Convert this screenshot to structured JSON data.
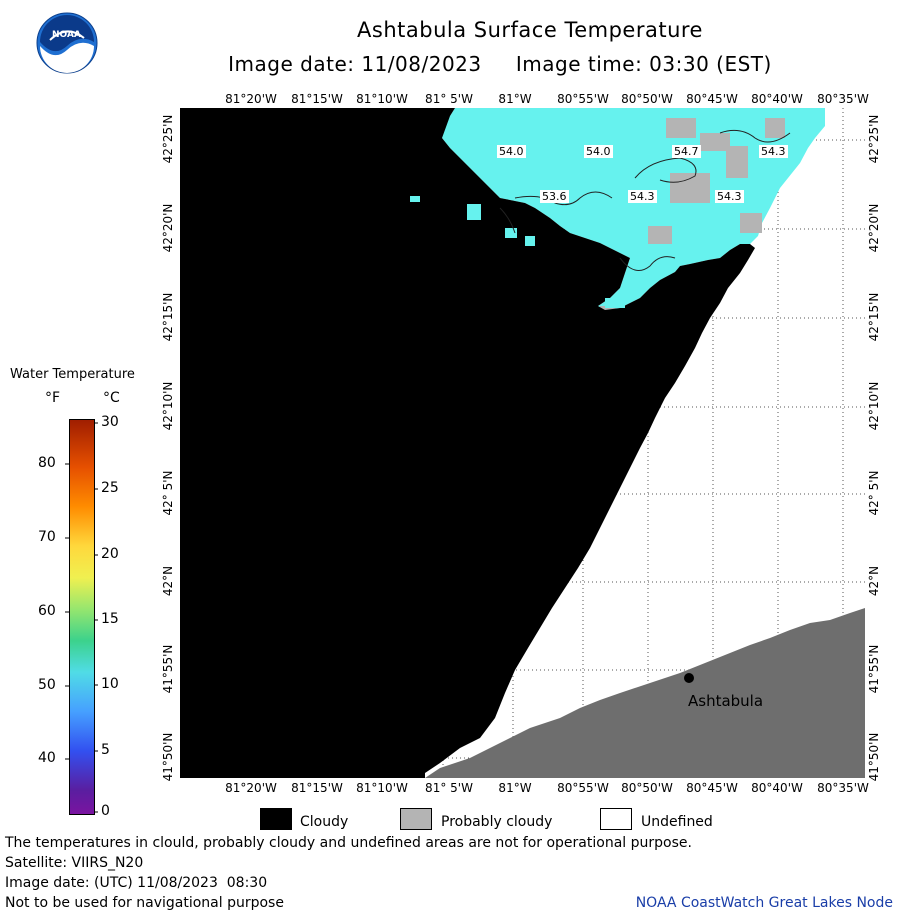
{
  "header": {
    "title": "Ashtabula Surface Temperature",
    "subtitle": "Image date: 11/08/2023     Image time: 03:30 (EST)",
    "logo_text": "NOAA"
  },
  "map": {
    "lon_labels": [
      "81°20'W",
      "81°15'W",
      "81°10'W",
      "81° 5'W",
      "81°W",
      "80°55'W",
      "80°50'W",
      "80°45'W",
      "80°40'W",
      "80°35'W"
    ],
    "lat_labels": [
      "42°25'N",
      "42°20'N",
      "42°15'N",
      "42°10'N",
      "42° 5'N",
      "42°N",
      "41°55'N",
      "41°50'N"
    ],
    "temperature_labels": [
      "54.0",
      "54.0",
      "54.7",
      "54.3",
      "53.6",
      "54.3",
      "54.3"
    ],
    "city": "Ashtabula",
    "colors": {
      "cloudy": "#000000",
      "probably_cloudy": "#b4b4b4",
      "undefined": "#ffffff",
      "land": "#6e6e6e",
      "water": "#66f2ee"
    }
  },
  "legend": {
    "title": "Water Temperature",
    "unit_f": "°F",
    "unit_c": "°C",
    "f_ticks": [
      "80",
      "70",
      "60",
      "50",
      "40"
    ],
    "c_ticks": [
      "30",
      "25",
      "20",
      "15",
      "10",
      "5",
      "0"
    ]
  },
  "key": {
    "cloudy": "Cloudy",
    "probably_cloudy": "Probably cloudy",
    "undefined": "Undefined"
  },
  "footer": {
    "disclaimer": "The temperatures in clould, probably cloudy and undefined areas are not for operational purpose.",
    "satellite": "Satellite: VIIRS_N20",
    "image_date_utc": "Image date: (UTC) 11/08/2023  08:30",
    "navigation_note": "Not to be used for navigational purpose",
    "credit": "NOAA CoastWatch Great Lakes Node"
  }
}
